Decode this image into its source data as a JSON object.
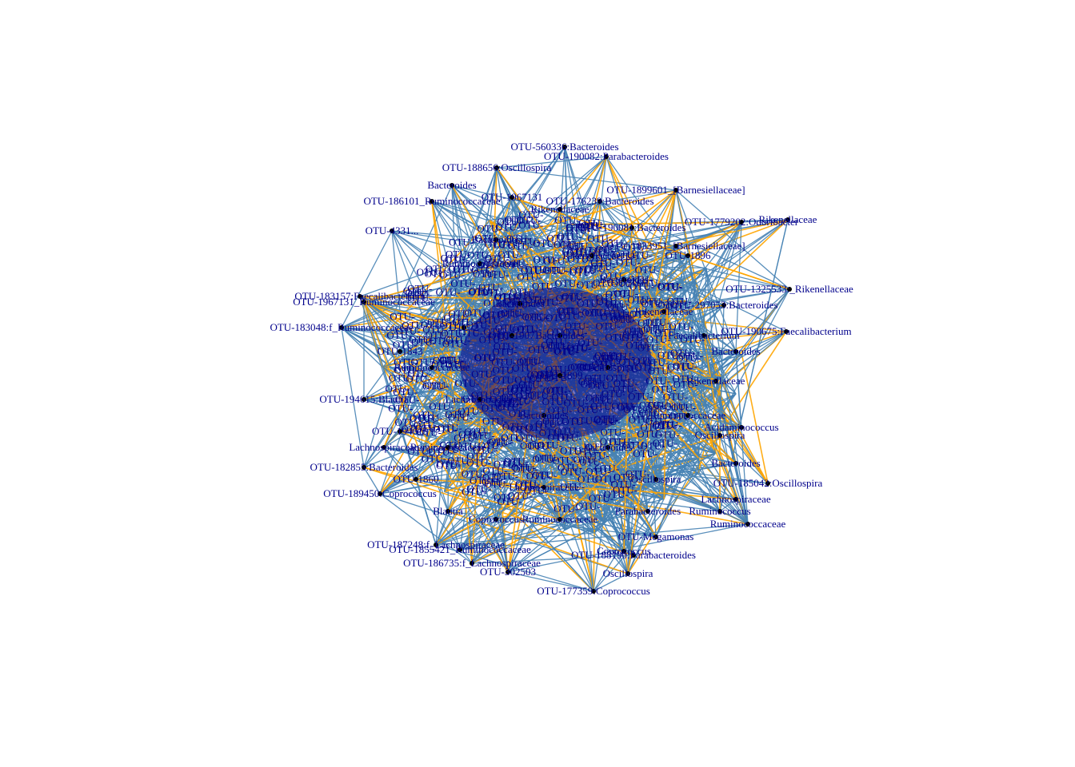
{
  "colors": {
    "background": "#ffffff",
    "edge_positive": "#4682b4",
    "edge_negative": "#ffa500",
    "node_fill": "#000000",
    "label": "#00008b"
  },
  "network": {
    "hairball_label": "OTU-",
    "nodes": [
      {
        "id": "n0",
        "label": "OTU-560336:Bacteroides"
      },
      {
        "id": "n1",
        "label": "OTU-190082:Parabacteroides"
      },
      {
        "id": "n2",
        "label": "OTU-188656:Oscillospira"
      },
      {
        "id": "n3",
        "label": "OTU-1899601_[Barnesiellaceae]"
      },
      {
        "id": "n4",
        "label": "OTU-176239:Bacteroides"
      },
      {
        "id": "n5",
        "label": "OTU-1779202:Odoribacter"
      },
      {
        "id": "n6",
        "label": "Rikenellaceae"
      },
      {
        "id": "n7",
        "label": "OTU-1833951_[Barnesiellaceae]"
      },
      {
        "id": "n8",
        "label": "OTU-190081:Bacteroides"
      },
      {
        "id": "n9",
        "label": "OTU-4331..."
      },
      {
        "id": "n10",
        "label": "OTU-1325533:_Rikenellaceae"
      },
      {
        "id": "n11",
        "label": "OTU-297053:Bacteroides"
      },
      {
        "id": "n12",
        "label": "OTU-190675:Faecalibacterium"
      },
      {
        "id": "n13",
        "label": "OTU-183157:Faecalibacterium"
      },
      {
        "id": "n14",
        "label": "OTU-1967131_Ruminococcaceae"
      },
      {
        "id": "n15",
        "label": "OTU-183048:f_Ruminococcaceae"
      },
      {
        "id": "n16",
        "label": "OTU-194615:Blautia"
      },
      {
        "id": "n17",
        "label": "Bacteroides"
      },
      {
        "id": "n18",
        "label": "Rikenellaceae"
      },
      {
        "id": "n19",
        "label": "OTU-2"
      },
      {
        "id": "n20",
        "label": "Acidaminococcus"
      },
      {
        "id": "n21",
        "label": "OTU-182855:Bacteroides"
      },
      {
        "id": "n22",
        "label": "OTU-185042:Oscillospira"
      },
      {
        "id": "n23",
        "label": "Lachnospiraceae"
      },
      {
        "id": "n24",
        "label": "OTU-189450:Coprococcus"
      },
      {
        "id": "n25",
        "label": "Ruminococcaceae"
      },
      {
        "id": "n26",
        "label": "OTU-Megamonas"
      },
      {
        "id": "n27",
        "label": "OTU-187248:f_Lachnospiraceae"
      },
      {
        "id": "n28",
        "label": "OTU-1855421_Ruminococcaceae"
      },
      {
        "id": "n29",
        "label": "OTU-188190:Parabacteroides"
      },
      {
        "id": "n30",
        "label": "OTU-186735:f_Lachnospiraceae"
      },
      {
        "id": "n31",
        "label": "OTU-302503"
      },
      {
        "id": "n32",
        "label": "OTU-177359:Coprococcus"
      },
      {
        "id": "n33",
        "label": "OTU-186101_Ruminococcaceae"
      },
      {
        "id": "n34",
        "label": "OTU-1967131"
      },
      {
        "id": "n35",
        "label": "Oscillospira"
      },
      {
        "id": "n36",
        "label": "Bacteroides"
      },
      {
        "id": "n37",
        "label": "OTU-194615"
      },
      {
        "id": "n38",
        "label": "Rikenellaceae"
      },
      {
        "id": "n39",
        "label": "Bacteroides"
      },
      {
        "id": "n40",
        "label": "OTU-1899"
      },
      {
        "id": "n41",
        "label": "Faecalibacterium"
      },
      {
        "id": "n42",
        "label": "Ruminococcaceae"
      },
      {
        "id": "n43",
        "label": "Bacteroides"
      },
      {
        "id": "n44",
        "label": "Oscillospira"
      },
      {
        "id": "n45",
        "label": "Lachnospiraceae"
      },
      {
        "id": "n46",
        "label": "Ruminococcus"
      },
      {
        "id": "n47",
        "label": "Bacteroides"
      },
      {
        "id": "n48",
        "label": "OTU-1860"
      },
      {
        "id": "n49",
        "label": "Blautia"
      },
      {
        "id": "n50",
        "label": "OTU-1896"
      },
      {
        "id": "n51",
        "label": "Coprococcus"
      },
      {
        "id": "n52",
        "label": "Ruminococcaceae"
      },
      {
        "id": "n53",
        "label": "Rikenellaceae"
      },
      {
        "id": "n54",
        "label": "OTU-1907"
      },
      {
        "id": "n55",
        "label": "Bacteroides"
      },
      {
        "id": "n56",
        "label": "Lachnospiraceae"
      },
      {
        "id": "n57",
        "label": "Oscillospira"
      },
      {
        "id": "n58",
        "label": "Ruminococcaceae"
      },
      {
        "id": "n59",
        "label": "Bacteroides"
      },
      {
        "id": "n60",
        "label": "Parabacteroides"
      },
      {
        "id": "n61",
        "label": "OTU-1843"
      },
      {
        "id": "n62",
        "label": "Ruminococcaceae"
      },
      {
        "id": "n63",
        "label": "Bacteroides"
      },
      {
        "id": "n64",
        "label": "Lachnospiraceae"
      },
      {
        "id": "n65",
        "label": "Oscillospira"
      },
      {
        "id": "n66",
        "label": "Rikenellaceae"
      },
      {
        "id": "n67",
        "label": "Bacteroides"
      },
      {
        "id": "n68",
        "label": "Ruminococcaceae"
      },
      {
        "id": "n69",
        "label": "Coprococcus"
      }
    ]
  }
}
